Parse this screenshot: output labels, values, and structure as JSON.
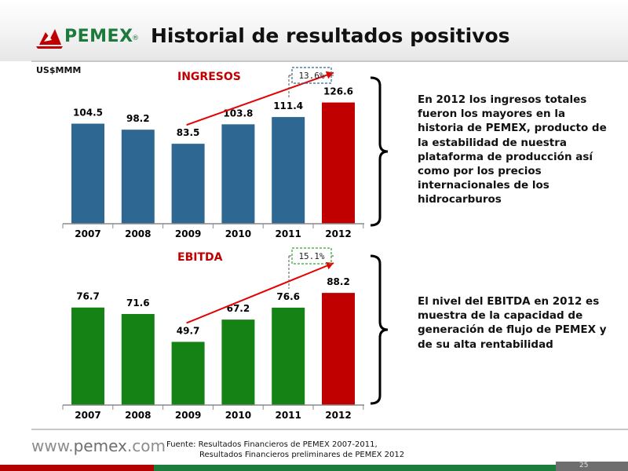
{
  "header": {
    "brand": "PEMEX",
    "registered_mark": "®",
    "title": "Historial de resultados positivos"
  },
  "unit_label": "US$MMM",
  "chart_data": [
    {
      "type": "bar",
      "title": "INGRESOS",
      "categories": [
        "2007",
        "2008",
        "2009",
        "2010",
        "2011",
        "2012"
      ],
      "values": [
        104.5,
        98.2,
        83.5,
        103.8,
        111.4,
        126.6
      ],
      "data_labels": [
        "104.5",
        "98.2",
        "83.5",
        "103.8",
        "111.4",
        "126.6"
      ],
      "bar_colors": [
        "#2e6892",
        "#2e6892",
        "#2e6892",
        "#2e6892",
        "#2e6892",
        "#c00000"
      ],
      "annotation": "13.6%",
      "annotation_color": "#2e6892",
      "trend_from": "2009",
      "trend_to": "2012",
      "trend_color": "#e60000"
    },
    {
      "type": "bar",
      "title": "EBITDA",
      "categories": [
        "2007",
        "2008",
        "2009",
        "2010",
        "2011",
        "2012"
      ],
      "values": [
        76.7,
        71.6,
        49.7,
        67.2,
        76.6,
        88.2
      ],
      "data_labels": [
        "76.7",
        "71.6",
        "49.7",
        "67.2",
        "76.6",
        "88.2"
      ],
      "bar_colors": [
        "#158215",
        "#158215",
        "#158215",
        "#158215",
        "#158215",
        "#c00000"
      ],
      "annotation": "15.1%",
      "annotation_color": "#2ea82e",
      "trend_from": "2009",
      "trend_to": "2012",
      "trend_color": "#e60000"
    }
  ],
  "notes": {
    "ingresos": "En 2012 los ingresos totales fueron los mayores en la historia de PEMEX, producto de la estabilidad de nuestra plataforma de producción así como por los precios internacionales de los hidrocarburos",
    "ebitda": "El nivel del EBITDA en 2012 es muestra de la capacidad de generación de flujo de PEMEX y de su alta rentabilidad"
  },
  "footer": {
    "website_prefix": "www.",
    "website_brand": "pemex",
    "website_suffix": ".com",
    "source_line1": "Fuente: Resultados Financieros de PEMEX 2007-2011,",
    "source_line2": "Resultados Financieros preliminares de PEMEX 2012",
    "page_number": "25"
  },
  "colors": {
    "brand_green": "#1b7a3c",
    "brand_red": "#b30000"
  }
}
